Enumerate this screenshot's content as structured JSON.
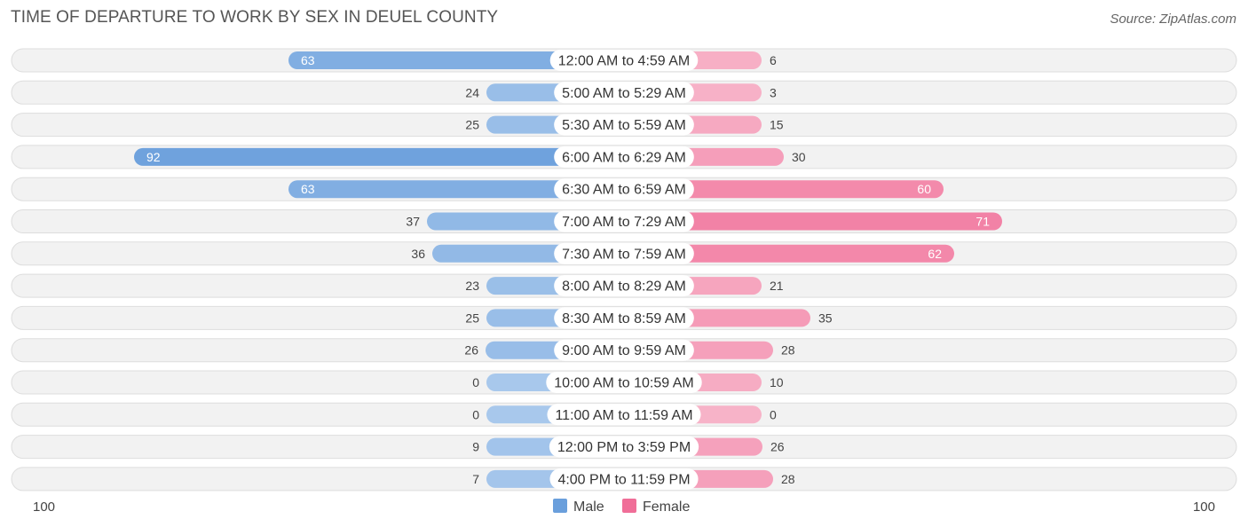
{
  "header": {
    "title": "TIME OF DEPARTURE TO WORK BY SEX IN DEUEL COUNTY",
    "source": "Source: ZipAtlas.com"
  },
  "colors": {
    "male_light": "#a8c8ec",
    "male_dark": "#6a9fdc",
    "female_light": "#f7b3c8",
    "female_dark": "#f06e98"
  },
  "chart_data": {
    "type": "bar",
    "orientation": "horizontal-diverging",
    "categories": [
      "12:00 AM to 4:59 AM",
      "5:00 AM to 5:29 AM",
      "5:30 AM to 5:59 AM",
      "6:00 AM to 6:29 AM",
      "6:30 AM to 6:59 AM",
      "7:00 AM to 7:29 AM",
      "7:30 AM to 7:59 AM",
      "8:00 AM to 8:29 AM",
      "8:30 AM to 8:59 AM",
      "9:00 AM to 9:59 AM",
      "10:00 AM to 10:59 AM",
      "11:00 AM to 11:59 AM",
      "12:00 PM to 3:59 PM",
      "4:00 PM to 11:59 PM"
    ],
    "series": [
      {
        "name": "Male",
        "values": [
          63,
          24,
          25,
          92,
          63,
          37,
          36,
          23,
          25,
          26,
          0,
          0,
          9,
          7
        ]
      },
      {
        "name": "Female",
        "values": [
          6,
          3,
          15,
          30,
          60,
          71,
          62,
          21,
          35,
          28,
          10,
          0,
          26,
          28
        ]
      }
    ],
    "axis": {
      "left_label": "100",
      "right_label": "100",
      "max": 100
    },
    "legend": {
      "position": "bottom-center",
      "items": [
        "Male",
        "Female"
      ]
    }
  }
}
